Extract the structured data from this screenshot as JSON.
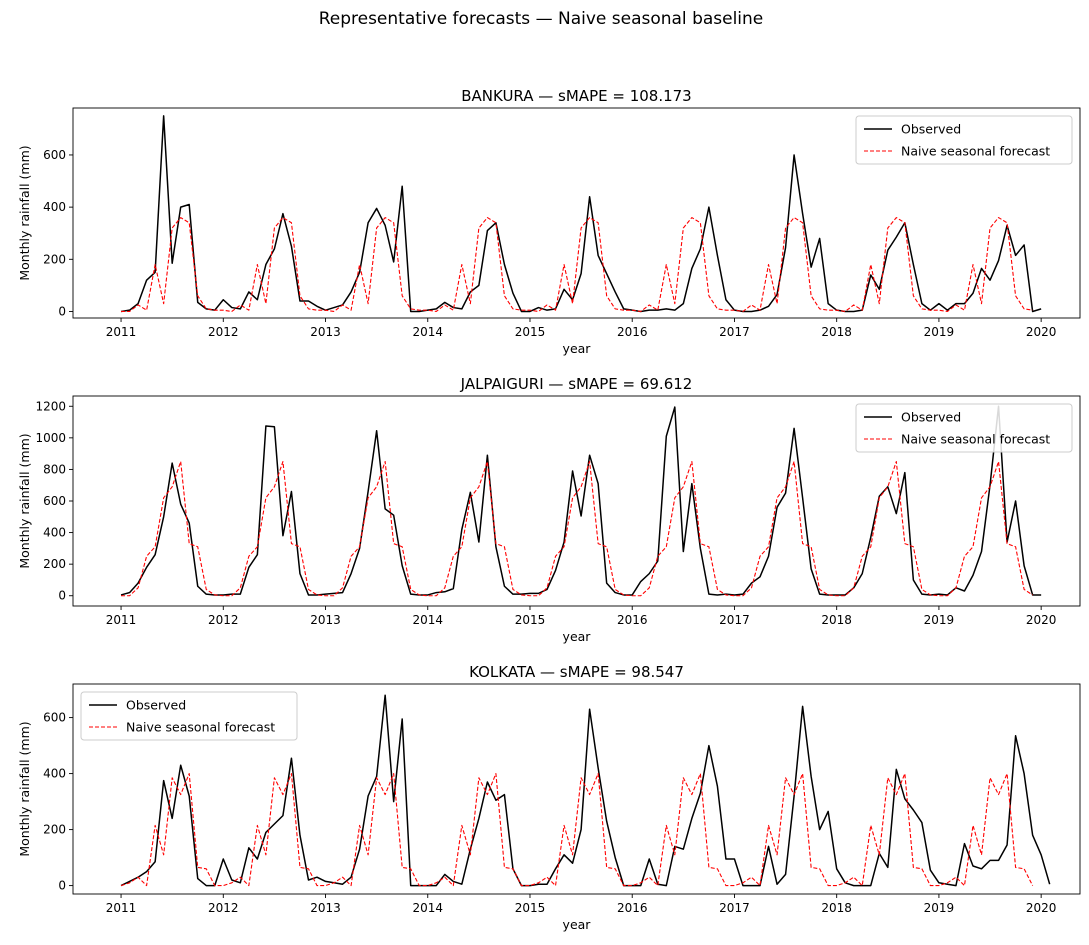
{
  "suptitle": "Representative forecasts — Naive seasonal baseline",
  "colors": {
    "observed": "#000000",
    "forecast": "#ff0000"
  },
  "chart_data": [
    {
      "type": "line",
      "title": "BANKURA  —  sMAPE = 108.173",
      "xlabel": "year",
      "ylabel": "Monthly rainfall (mm)",
      "xlim": [
        2010.53,
        2020.38
      ],
      "ylim": [
        -25,
        780
      ],
      "yticks": [
        0,
        200,
        400,
        600
      ],
      "xticks": [
        2011,
        2012,
        2013,
        2014,
        2015,
        2016,
        2017,
        2018,
        2019,
        2020
      ],
      "legend_loc": "upper right",
      "series": [
        {
          "name": "Observed",
          "style": "solid",
          "values": [
            0,
            5,
            30,
            120,
            150,
            750,
            185,
            400,
            410,
            35,
            10,
            5,
            45,
            15,
            10,
            75,
            45,
            180,
            240,
            375,
            250,
            40,
            40,
            20,
            5,
            15,
            25,
            75,
            150,
            340,
            395,
            330,
            190,
            480,
            0,
            0,
            5,
            10,
            35,
            15,
            10,
            75,
            100,
            310,
            340,
            180,
            70,
            0,
            0,
            15,
            5,
            10,
            85,
            45,
            145,
            440,
            215,
            145,
            75,
            10,
            5,
            0,
            5,
            5,
            10,
            5,
            30,
            165,
            240,
            400,
            215,
            45,
            5,
            0,
            0,
            5,
            20,
            65,
            245,
            600,
            375,
            170,
            280,
            30,
            5,
            0,
            0,
            5,
            140,
            85,
            235,
            285,
            340,
            180,
            30,
            5,
            30,
            5,
            30,
            30,
            70,
            165,
            120,
            195,
            330,
            215,
            255,
            0,
            10
          ]
        },
        {
          "name": "Naive seasonal forecast",
          "style": "dashed",
          "values": [
            0,
            0,
            25,
            5,
            180,
            30,
            320,
            360,
            340,
            60,
            10,
            5,
            5,
            0,
            25,
            5,
            180,
            30,
            320,
            360,
            340,
            60,
            10,
            5,
            5,
            0,
            25,
            5,
            180,
            30,
            320,
            360,
            340,
            60,
            10,
            5,
            5,
            0,
            25,
            5,
            180,
            30,
            320,
            360,
            340,
            60,
            10,
            5,
            5,
            0,
            25,
            5,
            180,
            30,
            320,
            360,
            340,
            60,
            10,
            5,
            5,
            0,
            25,
            5,
            180,
            30,
            320,
            360,
            340,
            60,
            10,
            5,
            5,
            0,
            25,
            5,
            180,
            30,
            320,
            360,
            340,
            60,
            10,
            5,
            5,
            0,
            25,
            5,
            180,
            30,
            320,
            360,
            340,
            60,
            10,
            5,
            5,
            0,
            25,
            5,
            180,
            30,
            320,
            360,
            340,
            60,
            10,
            5
          ]
        }
      ]
    },
    {
      "type": "line",
      "title": "JALPAIGURI  —  sMAPE = 69.612",
      "xlabel": "year",
      "ylabel": "Monthly rainfall (mm)",
      "xlim": [
        2010.53,
        2020.38
      ],
      "ylim": [
        -65,
        1265
      ],
      "yticks": [
        0,
        200,
        400,
        600,
        800,
        1000,
        1200
      ],
      "xticks": [
        2011,
        2012,
        2013,
        2014,
        2015,
        2016,
        2017,
        2018,
        2019,
        2020
      ],
      "legend_loc": "upper right",
      "series": [
        {
          "name": "Observed",
          "style": "solid",
          "values": [
            5,
            20,
            80,
            180,
            260,
            500,
            840,
            580,
            460,
            60,
            10,
            5,
            5,
            10,
            10,
            180,
            260,
            1075,
            1070,
            380,
            660,
            140,
            5,
            5,
            10,
            15,
            20,
            140,
            300,
            660,
            1045,
            550,
            510,
            190,
            10,
            5,
            5,
            20,
            25,
            45,
            420,
            655,
            340,
            890,
            310,
            60,
            10,
            10,
            15,
            15,
            40,
            160,
            340,
            790,
            505,
            890,
            710,
            80,
            20,
            5,
            5,
            90,
            140,
            220,
            1010,
            1195,
            280,
            710,
            300,
            10,
            5,
            10,
            5,
            10,
            80,
            120,
            250,
            560,
            650,
            1060,
            620,
            170,
            10,
            5,
            5,
            5,
            50,
            140,
            370,
            630,
            690,
            520,
            780,
            100,
            10,
            5,
            10,
            5,
            50,
            30,
            130,
            280,
            700,
            1200,
            340,
            600,
            190,
            5,
            5
          ]
        },
        {
          "name": "Naive seasonal forecast",
          "style": "dashed",
          "values": [
            0,
            0,
            50,
            250,
            310,
            620,
            690,
            850,
            330,
            310,
            40,
            5,
            0,
            0,
            50,
            250,
            310,
            620,
            690,
            850,
            330,
            310,
            40,
            5,
            0,
            0,
            50,
            250,
            310,
            620,
            690,
            850,
            330,
            310,
            40,
            5,
            0,
            0,
            50,
            250,
            310,
            620,
            690,
            850,
            330,
            310,
            40,
            5,
            0,
            0,
            50,
            250,
            310,
            620,
            690,
            850,
            330,
            310,
            40,
            5,
            0,
            0,
            50,
            250,
            310,
            620,
            690,
            850,
            330,
            310,
            40,
            5,
            0,
            0,
            50,
            250,
            310,
            620,
            690,
            850,
            330,
            310,
            40,
            5,
            0,
            0,
            50,
            250,
            310,
            620,
            690,
            850,
            330,
            310,
            40,
            5,
            0,
            0,
            50,
            250,
            310,
            620,
            690,
            850,
            330,
            310,
            40,
            5
          ]
        }
      ]
    },
    {
      "type": "line",
      "title": "KOLKATA  —  sMAPE = 98.547",
      "xlabel": "year",
      "ylabel": "Monthly rainfall (mm)",
      "xlim": [
        2010.53,
        2020.38
      ],
      "ylim": [
        -30,
        720
      ],
      "yticks": [
        0,
        200,
        400,
        600
      ],
      "xticks": [
        2011,
        2012,
        2013,
        2014,
        2015,
        2016,
        2017,
        2018,
        2019,
        2020
      ],
      "legend_loc": "upper left",
      "series": [
        {
          "name": "Observed",
          "style": "solid",
          "values": [
            0,
            15,
            30,
            50,
            85,
            375,
            240,
            430,
            320,
            25,
            0,
            0,
            95,
            20,
            10,
            135,
            95,
            190,
            220,
            250,
            455,
            180,
            20,
            30,
            15,
            10,
            5,
            30,
            130,
            320,
            390,
            680,
            300,
            595,
            0,
            0,
            0,
            0,
            40,
            15,
            5,
            130,
            240,
            370,
            305,
            325,
            60,
            0,
            0,
            5,
            5,
            60,
            110,
            80,
            200,
            630,
            420,
            230,
            100,
            0,
            0,
            0,
            95,
            5,
            0,
            140,
            130,
            240,
            330,
            500,
            355,
            95,
            95,
            0,
            0,
            0,
            140,
            5,
            40,
            320,
            640,
            390,
            200,
            265,
            60,
            10,
            0,
            0,
            0,
            115,
            65,
            415,
            310,
            270,
            225,
            55,
            10,
            5,
            0,
            150,
            70,
            60,
            90,
            90,
            145,
            535,
            400,
            180,
            110,
            5
          ]
        },
        {
          "name": "Naive seasonal forecast",
          "style": "dashed",
          "values": [
            0,
            10,
            30,
            0,
            215,
            110,
            385,
            325,
            400,
            65,
            60,
            0,
            0,
            10,
            30,
            0,
            215,
            110,
            385,
            325,
            400,
            65,
            60,
            0,
            0,
            10,
            30,
            0,
            215,
            110,
            385,
            325,
            400,
            65,
            60,
            0,
            0,
            10,
            30,
            0,
            215,
            110,
            385,
            325,
            400,
            65,
            60,
            0,
            0,
            10,
            30,
            0,
            215,
            110,
            385,
            325,
            400,
            65,
            60,
            0,
            0,
            10,
            30,
            0,
            215,
            110,
            385,
            325,
            400,
            65,
            60,
            0,
            0,
            10,
            30,
            0,
            215,
            110,
            385,
            325,
            400,
            65,
            60,
            0,
            0,
            10,
            30,
            0,
            215,
            110,
            385,
            325,
            400,
            65,
            60,
            0,
            0,
            10,
            30,
            0,
            215,
            110,
            385,
            325,
            400,
            65,
            60,
            0
          ]
        }
      ]
    }
  ]
}
